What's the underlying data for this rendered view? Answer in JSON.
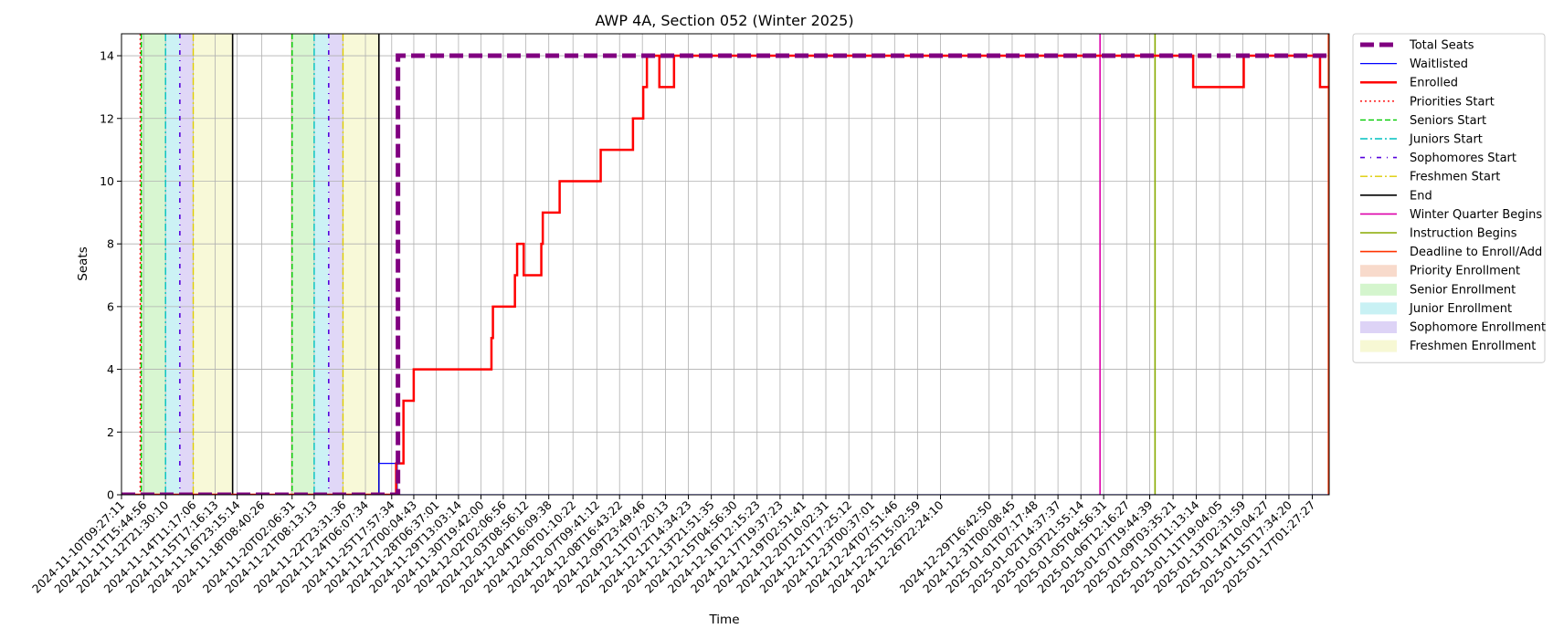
{
  "chart_data": {
    "type": "line",
    "title": "AWP 4A, Section 052 (Winter 2025)",
    "xlabel": "Time",
    "ylabel": "Seats",
    "ylim": [
      0,
      14.7
    ],
    "yticks": [
      0,
      2,
      4,
      6,
      8,
      10,
      12,
      14
    ],
    "xlim": [
      "2024-11-10T09:27:11",
      "2025-01-18T00:30:00"
    ],
    "grid": true,
    "legend_position": "outside-right",
    "xtick_labels": [
      "2024-11-10T09:27:11",
      "2024-11-11T15:44:56",
      "2024-11-12T21:30:10",
      "2024-11-14T11:17:06",
      "2024-11-15T17:16:13",
      "2024-11-16T23:15:14",
      "2024-11-18T08:40:26",
      "2024-11-20T02:06:31",
      "2024-11-21T08:13:13",
      "2024-11-22T23:31:36",
      "2024-11-24T06:07:34",
      "2024-11-25T17:57:34",
      "2024-11-27T00:04:43",
      "2024-11-28T06:37:01",
      "2024-11-29T13:03:14",
      "2024-11-30T19:42:00",
      "2024-12-02T02:06:56",
      "2024-12-03T08:56:12",
      "2024-12-04T16:09:38",
      "2024-12-06T01:10:22",
      "2024-12-07T09:41:12",
      "2024-12-08T16:43:22",
      "2024-12-09T23:49:46",
      "2024-12-11T07:20:13",
      "2024-12-12T14:34:23",
      "2024-12-13T21:51:35",
      "2024-12-15T04:56:30",
      "2024-12-16T12:15:23",
      "2024-12-17T19:37:23",
      "2024-12-19T02:51:41",
      "2024-12-20T10:02:31",
      "2024-12-21T17:25:12",
      "2024-12-23T00:37:01",
      "2024-12-24T07:51:46",
      "2024-12-25T15:02:59",
      "2024-12-26T22:24:10",
      "2024-12-29T16:42:50",
      "2024-12-31T00:08:45",
      "2025-01-01T07:17:48",
      "2025-01-02T14:37:37",
      "2025-01-03T21:55:14",
      "2025-01-05T04:56:31",
      "2025-01-06T12:16:27",
      "2025-01-07T19:44:39",
      "2025-01-09T03:35:21",
      "2025-01-10T11:13:14",
      "2025-01-11T19:04:05",
      "2025-01-13T02:31:59",
      "2025-01-14T10:04:27",
      "2025-01-15T17:34:20",
      "2025-01-17T01:27:27"
    ],
    "enrollment_periods": [
      {
        "name": "Priority Enrollment",
        "color": "#f4c1a9",
        "ranges": [
          [
            "2024-11-11T10:30:00",
            "2024-11-11T12:30:00"
          ],
          [
            "2024-11-20T00:00:00",
            "2024-11-20T02:06:31"
          ]
        ]
      },
      {
        "name": "Senior Enrollment",
        "color": "#b8eeac",
        "ranges": [
          [
            "2024-11-11T12:30:00",
            "2024-11-12T21:30:10"
          ],
          [
            "2024-11-20T02:06:31",
            "2024-11-21T08:13:13"
          ]
        ]
      },
      {
        "name": "Junior Enrollment",
        "color": "#a3e7ec",
        "ranges": [
          [
            "2024-11-12T21:30:10",
            "2024-11-13T17:00:00"
          ],
          [
            "2024-11-21T08:13:13",
            "2024-11-22T04:00:00"
          ]
        ]
      },
      {
        "name": "Sophomore Enrollment",
        "color": "#c6b6f0",
        "ranges": [
          [
            "2024-11-13T17:00:00",
            "2024-11-14T11:17:06"
          ],
          [
            "2024-11-22T04:00:00",
            "2024-11-22T23:31:36"
          ]
        ]
      },
      {
        "name": "Freshmen Enrollment",
        "color": "#f2f4b8",
        "ranges": [
          [
            "2024-11-14T11:17:06",
            "2024-11-16T17:00:00"
          ],
          [
            "2024-11-22T23:31:36",
            "2024-11-25T00:30:00"
          ]
        ]
      }
    ],
    "event_lines": [
      {
        "name": "Priorities Start",
        "color": "#ff0000",
        "dash": "2,3",
        "width": 1.4,
        "dates": [
          "2024-11-11T11:00:00"
        ]
      },
      {
        "name": "Seniors Start",
        "color": "#00cc00",
        "dash": "6,3",
        "width": 1.4,
        "dates": [
          "2024-11-11T12:30:00",
          "2024-11-20T02:06:31"
        ]
      },
      {
        "name": "Juniors Start",
        "color": "#00c0c0",
        "dash": "8,3,2,3",
        "width": 1.4,
        "dates": [
          "2024-11-12T21:30:10",
          "2024-11-21T08:13:13"
        ]
      },
      {
        "name": "Sophomores Start",
        "color": "#5500dd",
        "dash": "5,6,1,6",
        "width": 1.6,
        "dates": [
          "2024-11-13T17:00:00",
          "2024-11-22T04:00:00"
        ]
      },
      {
        "name": "Freshmen Start",
        "color": "#ddcc00",
        "dash": "8,3,2,3",
        "width": 1.4,
        "dates": [
          "2024-11-14T11:17:06",
          "2024-11-22T23:31:36"
        ]
      },
      {
        "name": "End",
        "color": "#000000",
        "dash": "",
        "width": 1.6,
        "dates": [
          "2024-11-16T17:00:00",
          "2024-11-25T00:30:00"
        ]
      },
      {
        "name": "Winter Quarter Begins",
        "color": "#dd00aa",
        "dash": "",
        "width": 1.6,
        "dates": [
          "2025-01-05T00:00:00"
        ]
      },
      {
        "name": "Instruction Begins",
        "color": "#88aa00",
        "dash": "",
        "width": 1.6,
        "dates": [
          "2025-01-08T03:00:00"
        ]
      },
      {
        "name": "Deadline to Enroll/Add",
        "color": "#ff3300",
        "dash": "",
        "width": 1.6,
        "dates": [
          "2025-01-17T23:30:00"
        ]
      }
    ],
    "series": [
      {
        "name": "Total Seats",
        "color": "#800080",
        "width": 5,
        "dash": "15,6",
        "points": [
          [
            "2024-11-10T09:27:11",
            0
          ],
          [
            "2024-11-26T02:30:00",
            0
          ],
          [
            "2024-11-26T02:30:00",
            14
          ],
          [
            "2025-01-18T00:30:00",
            14
          ]
        ]
      },
      {
        "name": "Waitlisted",
        "color": "#0000ff",
        "width": 1.2,
        "dash": "",
        "points": [
          [
            "2024-11-10T09:27:11",
            0
          ],
          [
            "2024-11-25T00:30:00",
            0
          ],
          [
            "2024-11-25T00:30:00",
            1
          ],
          [
            "2024-11-26T01:30:00",
            1
          ],
          [
            "2024-11-26T01:30:00",
            0
          ],
          [
            "2025-01-18T00:30:00",
            0
          ]
        ]
      },
      {
        "name": "Enrolled",
        "color": "#ff0000",
        "width": 2.5,
        "dash": "",
        "points": [
          [
            "2024-11-10T09:27:11",
            0
          ],
          [
            "2024-11-26T00:00:00",
            0
          ],
          [
            "2024-11-26T00:00:00",
            1
          ],
          [
            "2024-11-26T10:00:00",
            1
          ],
          [
            "2024-11-26T10:00:00",
            3
          ],
          [
            "2024-11-27T00:00:00",
            3
          ],
          [
            "2024-11-27T00:00:00",
            4
          ],
          [
            "2024-12-01T10:00:00",
            4
          ],
          [
            "2024-12-01T10:00:00",
            5
          ],
          [
            "2024-12-01T12:00:00",
            5
          ],
          [
            "2024-12-01T12:00:00",
            6
          ],
          [
            "2024-12-02T18:00:00",
            6
          ],
          [
            "2024-12-02T18:00:00",
            7
          ],
          [
            "2024-12-02T21:00:00",
            7
          ],
          [
            "2024-12-02T21:00:00",
            8
          ],
          [
            "2024-12-03T06:00:00",
            8
          ],
          [
            "2024-12-03T06:00:00",
            7
          ],
          [
            "2024-12-04T06:00:00",
            7
          ],
          [
            "2024-12-04T06:00:00",
            8
          ],
          [
            "2024-12-04T08:00:00",
            8
          ],
          [
            "2024-12-04T08:00:00",
            9
          ],
          [
            "2024-12-05T07:00:00",
            9
          ],
          [
            "2024-12-05T07:00:00",
            10
          ],
          [
            "2024-12-07T15:00:00",
            10
          ],
          [
            "2024-12-07T15:00:00",
            11
          ],
          [
            "2024-12-09T11:00:00",
            11
          ],
          [
            "2024-12-09T11:00:00",
            12
          ],
          [
            "2024-12-10T01:00:00",
            12
          ],
          [
            "2024-12-10T01:00:00",
            13
          ],
          [
            "2024-12-10T06:00:00",
            13
          ],
          [
            "2024-12-10T06:00:00",
            14
          ],
          [
            "2024-12-10T23:00:00",
            14
          ],
          [
            "2024-12-10T23:00:00",
            13
          ],
          [
            "2024-12-11T19:00:00",
            13
          ],
          [
            "2024-12-11T19:00:00",
            14
          ],
          [
            "2025-01-10T07:00:00",
            14
          ],
          [
            "2025-01-10T07:00:00",
            13
          ],
          [
            "2025-01-13T04:00:00",
            13
          ],
          [
            "2025-01-13T04:00:00",
            14
          ],
          [
            "2025-01-17T12:00:00",
            14
          ],
          [
            "2025-01-17T12:00:00",
            13
          ],
          [
            "2025-01-18T00:30:00",
            13
          ]
        ]
      }
    ],
    "legend": {
      "items": [
        {
          "label": "Total Seats",
          "kind": "line",
          "color": "#800080",
          "width": 5,
          "dash": "15,6"
        },
        {
          "label": "Waitlisted",
          "kind": "line",
          "color": "#0000ff",
          "width": 1.2,
          "dash": ""
        },
        {
          "label": "Enrolled",
          "kind": "line",
          "color": "#ff0000",
          "width": 2.5,
          "dash": ""
        },
        {
          "label": "Priorities Start",
          "kind": "line",
          "color": "#ff0000",
          "width": 1.4,
          "dash": "2,3"
        },
        {
          "label": "Seniors Start",
          "kind": "line",
          "color": "#00cc00",
          "width": 1.4,
          "dash": "6,3"
        },
        {
          "label": "Juniors Start",
          "kind": "line",
          "color": "#00c0c0",
          "width": 1.4,
          "dash": "8,3,2,3"
        },
        {
          "label": "Sophomores Start",
          "kind": "line",
          "color": "#5500dd",
          "width": 1.6,
          "dash": "5,6,1,6"
        },
        {
          "label": "Freshmen Start",
          "kind": "line",
          "color": "#ddcc00",
          "width": 1.4,
          "dash": "8,3,2,3"
        },
        {
          "label": "End",
          "kind": "line",
          "color": "#000000",
          "width": 1.6,
          "dash": ""
        },
        {
          "label": "Winter Quarter Begins",
          "kind": "line",
          "color": "#dd00aa",
          "width": 1.6,
          "dash": ""
        },
        {
          "label": "Instruction Begins",
          "kind": "line",
          "color": "#88aa00",
          "width": 1.6,
          "dash": ""
        },
        {
          "label": "Deadline to Enroll/Add",
          "kind": "line",
          "color": "#ff3300",
          "width": 1.6,
          "dash": ""
        },
        {
          "label": "Priority Enrollment",
          "kind": "patch",
          "color": "#f4c1a9"
        },
        {
          "label": "Senior Enrollment",
          "kind": "patch",
          "color": "#b8eeac"
        },
        {
          "label": "Junior Enrollment",
          "kind": "patch",
          "color": "#a3e7ec"
        },
        {
          "label": "Sophomore Enrollment",
          "kind": "patch",
          "color": "#c6b6f0"
        },
        {
          "label": "Freshmen Enrollment",
          "kind": "patch",
          "color": "#f2f4b8"
        }
      ]
    }
  }
}
